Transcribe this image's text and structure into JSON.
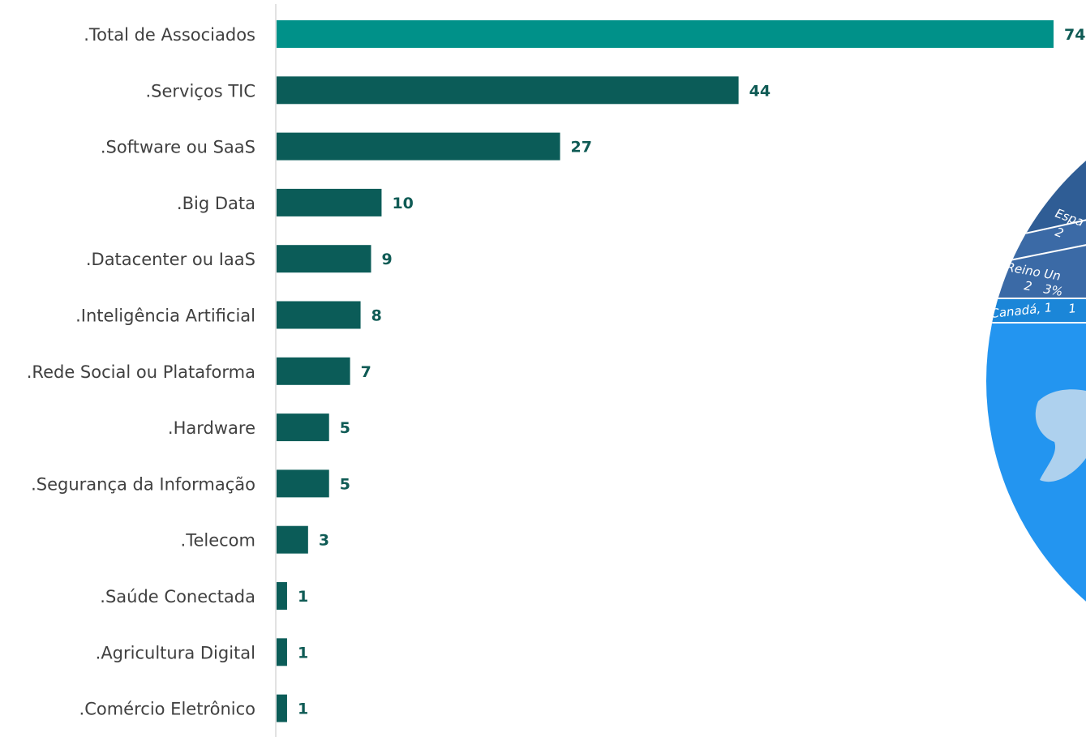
{
  "chart_data": {
    "type": "bar",
    "orientation": "horizontal",
    "categories": [
      ".Total de Associados",
      ".Serviços TIC",
      ".Software ou SaaS",
      ".Big Data",
      ".Datacenter ou IaaS",
      ".Inteligência Artificial",
      ".Rede Social ou Plataforma",
      ".Hardware",
      ".Segurança da Informação",
      ".Telecom",
      ".Saúde Conectada",
      ".Agricultura Digital",
      ".Comércio Eletrônico"
    ],
    "values": [
      74,
      44,
      27,
      10,
      9,
      8,
      7,
      5,
      5,
      3,
      1,
      1,
      1
    ],
    "xlim": [
      0,
      78
    ],
    "grid": false,
    "colors": {
      "highlight": "#009189",
      "bar": "#0b5c58",
      "value_label": "#0f5b55",
      "category_label": "#404040",
      "axis": "#d9d9d9"
    }
  },
  "map_fragment": {
    "labels": {
      "spain": "Espa",
      "spain_value": "2",
      "uk": "Reino Un",
      "uk_value": "2",
      "uk_pct": "3%",
      "canada": "Canadá, 1",
      "canada_pct": "1"
    },
    "colors": {
      "dark_blue": "#2f5d95",
      "mid_blue": "#3b6aa6",
      "light_blue": "#1b86d8",
      "bright_blue": "#2395f0",
      "divider": "#ffffff",
      "landmass": "#c7dced"
    }
  }
}
